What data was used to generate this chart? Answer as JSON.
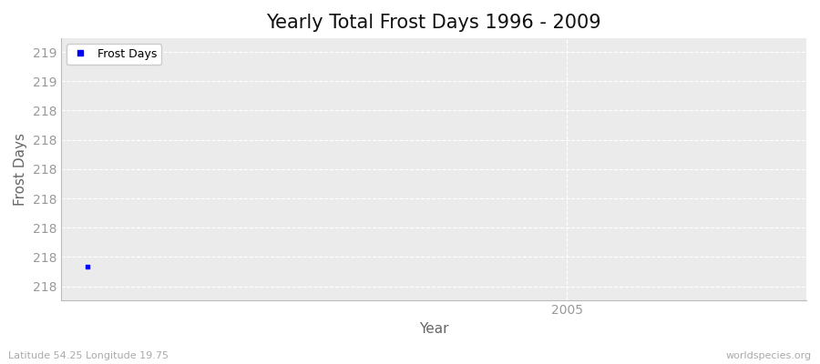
{
  "title": "Yearly Total Frost Days 1996 - 2009",
  "xlabel": "Year",
  "ylabel": "Frost Days",
  "x_data": [
    1996
  ],
  "y_data": [
    218.1
  ],
  "line_color": "#0000ff",
  "marker": "s",
  "marker_size": 3,
  "legend_label": "Frost Days",
  "xlim": [
    1995.5,
    2009.5
  ],
  "ylim": [
    217.93,
    219.27
  ],
  "x_ticks": [
    2005
  ],
  "ytick_values": [
    218.0,
    218.15,
    218.3,
    218.45,
    218.6,
    218.75,
    218.9,
    219.05,
    219.2
  ],
  "bg_color": "#ebebeb",
  "grid_color": "#ffffff",
  "subtitle_left": "Latitude 54.25 Longitude 19.75",
  "subtitle_right": "worldspecies.org",
  "title_fontsize": 15,
  "tick_color": "#999999",
  "spine_color": "#bbbbbb"
}
